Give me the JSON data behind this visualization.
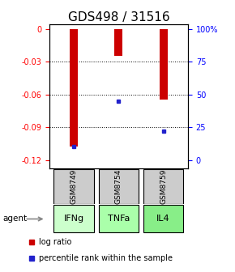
{
  "title": "GDS498 / 31516",
  "samples": [
    "GSM8749",
    "GSM8754",
    "GSM8759"
  ],
  "agents": [
    "IFNg",
    "TNFa",
    "IL4"
  ],
  "log_ratios": [
    -0.108,
    -0.025,
    -0.065
  ],
  "percentile_ranks": [
    10,
    45,
    22
  ],
  "left_yticks": [
    0,
    -0.03,
    -0.06,
    -0.09,
    -0.12
  ],
  "right_ytick_labels": [
    "100%",
    "75",
    "50",
    "25",
    "0"
  ],
  "ymin": -0.128,
  "ymax": 0.004,
  "bar_color": "#cc0000",
  "pct_color": "#2222cc",
  "sample_box_color": "#cccccc",
  "agent_colors": [
    "#ccffcc",
    "#aaffaa",
    "#88ee88"
  ],
  "grid_yticks": [
    -0.03,
    -0.06,
    -0.09
  ],
  "bar_width": 0.18,
  "title_fontsize": 11,
  "tick_fontsize": 7,
  "sample_fontsize": 6.5,
  "agent_fontsize": 8,
  "legend_red": "log ratio",
  "legend_blue": "percentile rank within the sample",
  "legend_fontsize": 7,
  "agent_label": "agent"
}
